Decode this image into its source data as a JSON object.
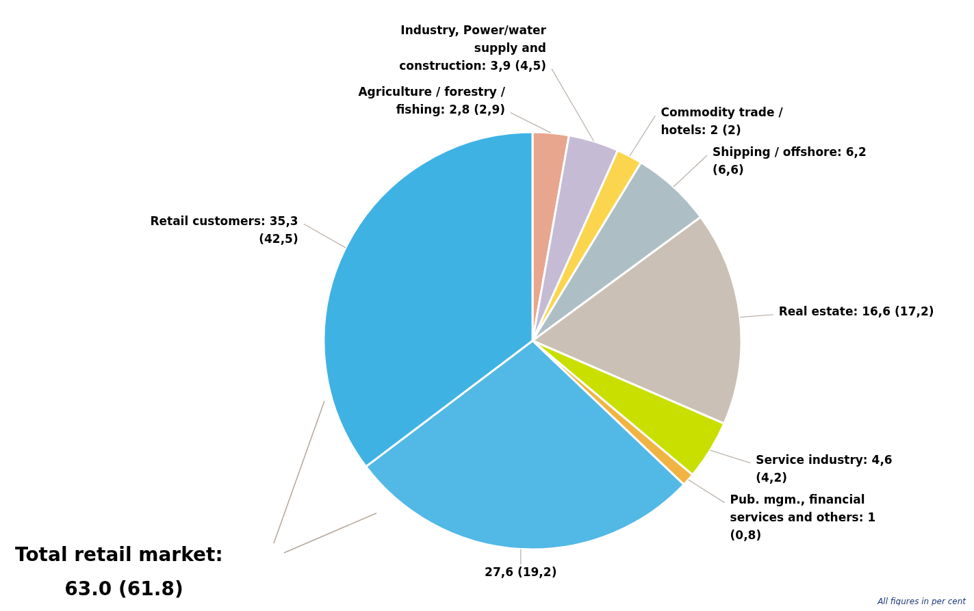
{
  "chart_data": {
    "type": "pie",
    "categories": [
      "Agriculture / forestry / fishing",
      "Industry, Power/water supply and construction",
      "Commodity trade / hotels",
      "Shipping / offshore",
      "Real estate",
      "Service industry",
      "Pub. mgm., financial services and others",
      null,
      "Retail customers"
    ],
    "values": [
      2.8,
      3.9,
      2,
      6.2,
      16.6,
      4.6,
      1,
      27.6,
      35.3
    ],
    "value_labels": [
      "2,8 (2,9)",
      "3,9 (4,5)",
      "2 (2)",
      "6,2 (6,6)",
      "16,6 (17,2)",
      "4,6 (4,2)",
      "1 (0,8)",
      "27,6 (19,2)",
      "35,3 (42,5)"
    ],
    "colors": [
      "#e8a68e",
      "#c6bbd4",
      "#fcd54f",
      "#adbfc5",
      "#cbc0b5",
      "#c9df00",
      "#f1b443",
      "#52b8e6",
      "#3fb2e4"
    ],
    "annotations": [
      "Total retail market:",
      "63.0 (61.8)",
      "All figures in per cent"
    ]
  }
}
